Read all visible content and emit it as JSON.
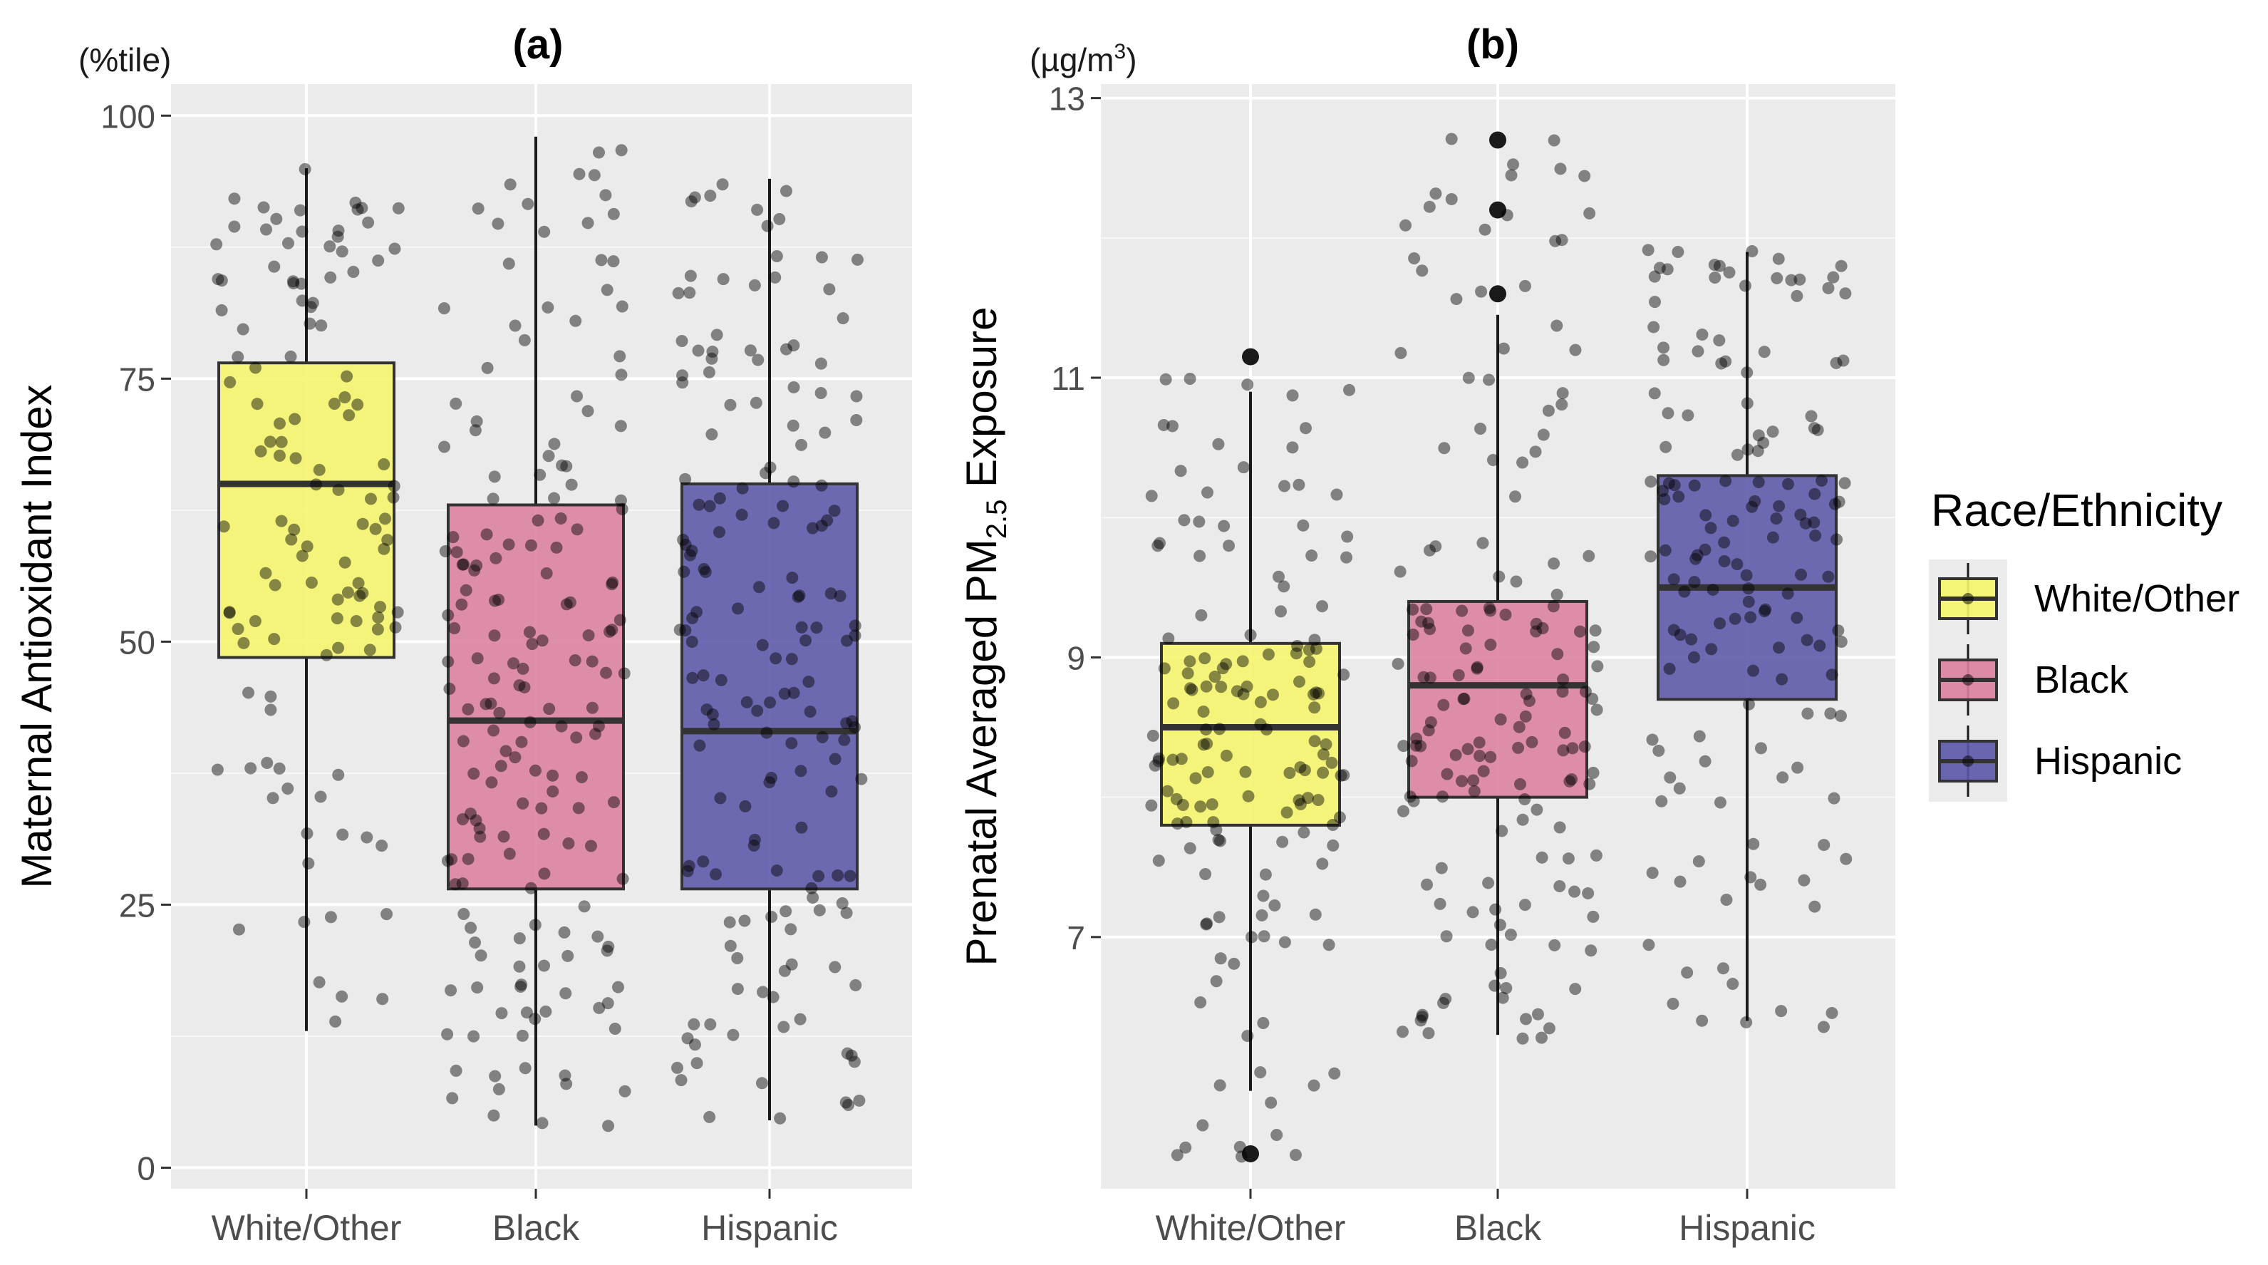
{
  "chart_data": [
    {
      "type": "box",
      "panel_label": "(a)",
      "unit": "(%tile)",
      "ylabel": "Maternal Antioxidant Index",
      "xlabel": "",
      "ylim": [
        -2,
        103
      ],
      "yticks": [
        0,
        25,
        50,
        75,
        100
      ],
      "categories": [
        "White/Other",
        "Black",
        "Hispanic"
      ],
      "boxes": [
        {
          "category": "White/Other",
          "color": "#f5f56a",
          "whisker_low": 13,
          "q1": 48.5,
          "median": 65,
          "q3": 76.5,
          "whisker_high": 95,
          "outliers": []
        },
        {
          "category": "Black",
          "color": "#dc7f9e",
          "whisker_low": 4,
          "q1": 26.5,
          "median": 42.5,
          "q3": 63,
          "whisker_high": 98,
          "outliers": []
        },
        {
          "category": "Hispanic",
          "color": "#5b57a8",
          "whisker_low": 4.5,
          "q1": 26.5,
          "median": 41.5,
          "q3": 65,
          "whisker_high": 94,
          "outliers": []
        }
      ],
      "jitter": [
        {
          "category": "White/Other",
          "n": 120,
          "min": 13,
          "max": 95
        },
        {
          "category": "Black",
          "n": 175,
          "min": 3.5,
          "max": 98
        },
        {
          "category": "Hispanic",
          "n": 165,
          "min": 4.5,
          "max": 94
        }
      ]
    },
    {
      "type": "box",
      "panel_label": "(b)",
      "unit_base": "(µg/m",
      "unit_sup": "3",
      "unit_end": ")",
      "ylabel_main": "Prenatal Averaged PM",
      "ylabel_sub": "2.5",
      "ylabel_end": " Exposure",
      "xlabel": "",
      "ylim": [
        5.2,
        13.1
      ],
      "yticks": [
        7,
        9,
        11,
        13
      ],
      "categories": [
        "White/Other",
        "Black",
        "Hispanic"
      ],
      "boxes": [
        {
          "category": "White/Other",
          "color": "#f5f56a",
          "whisker_low": 5.9,
          "q1": 7.8,
          "median": 8.5,
          "q3": 9.1,
          "whisker_high": 10.9,
          "outliers": [
            11.15,
            5.45
          ]
        },
        {
          "category": "Black",
          "color": "#dc7f9e",
          "whisker_low": 6.3,
          "q1": 8.0,
          "median": 8.8,
          "q3": 9.4,
          "whisker_high": 11.45,
          "outliers": [
            12.7,
            12.2,
            11.6
          ]
        },
        {
          "category": "Hispanic",
          "color": "#5b57a8",
          "whisker_low": 6.4,
          "q1": 8.7,
          "median": 9.5,
          "q3": 10.3,
          "whisker_high": 11.9,
          "outliers": []
        }
      ],
      "jitter": [
        {
          "category": "White/Other",
          "n": 150,
          "min": 5.4,
          "max": 11.1
        },
        {
          "category": "Black",
          "n": 160,
          "min": 6.25,
          "max": 12.75
        },
        {
          "category": "Hispanic",
          "n": 150,
          "min": 6.35,
          "max": 11.95
        }
      ]
    }
  ],
  "legend": {
    "title": "Race/Ethnicity",
    "entries": [
      {
        "label": "White/Other",
        "color": "#f5f56a"
      },
      {
        "label": "Black",
        "color": "#dc7f9e"
      },
      {
        "label": "Hispanic",
        "color": "#5b57a8"
      }
    ]
  }
}
